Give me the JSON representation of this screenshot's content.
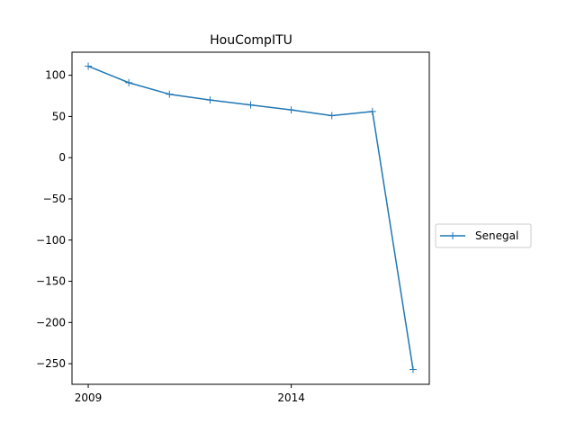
{
  "chart_data": {
    "type": "line",
    "title": "HouCompITU",
    "xlabel": "",
    "ylabel": "",
    "x": [
      2009,
      2010,
      2011,
      2012,
      2013,
      2014,
      2015,
      2016,
      2017
    ],
    "series": [
      {
        "name": "Senegal",
        "values": [
          111,
          91,
          77,
          70,
          64,
          58,
          51,
          56,
          -257
        ],
        "color": "#1f77b4",
        "marker": "plus"
      }
    ],
    "x_ticks": [
      2009,
      2014
    ],
    "x_tick_labels": [
      "2009",
      "2014"
    ],
    "y_ticks": [
      100,
      50,
      0,
      -50,
      -100,
      -150,
      -200,
      -250
    ],
    "y_tick_labels": [
      "100",
      "50",
      "0",
      "−50",
      "−100",
      "−150",
      "−200",
      "−250"
    ],
    "xlim": [
      2008.6,
      2017.4
    ],
    "ylim": [
      -275,
      128
    ],
    "grid": false,
    "legend_position": "center-right, outside plot"
  }
}
